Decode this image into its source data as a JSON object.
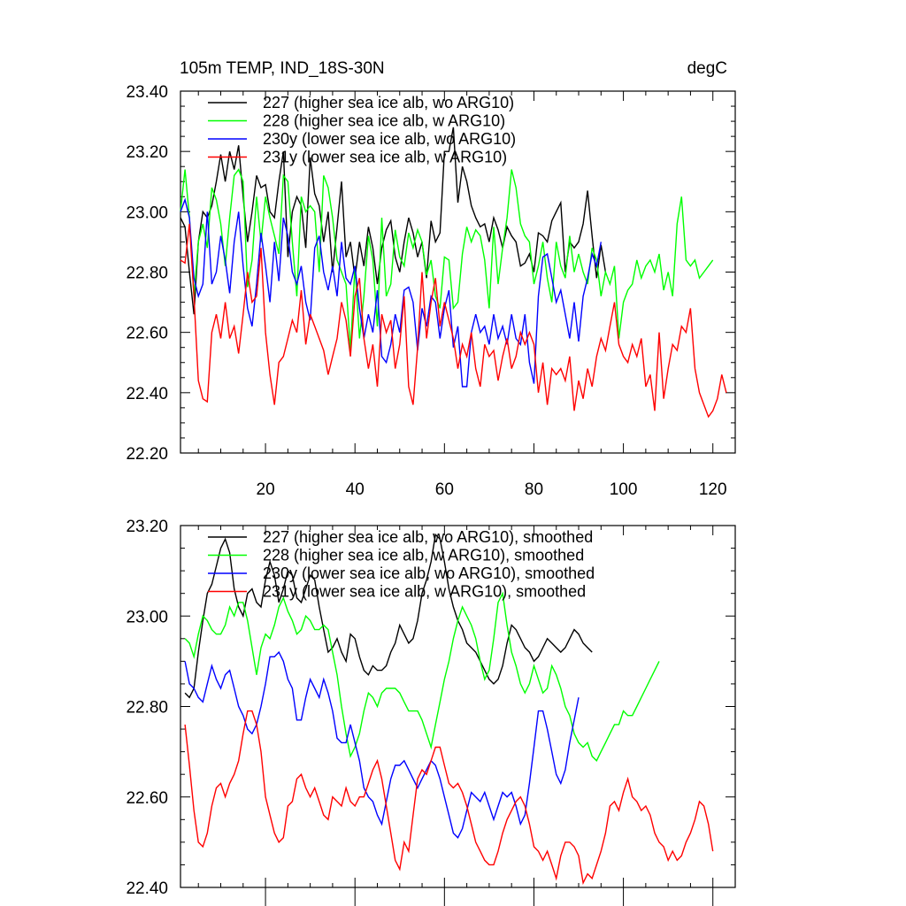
{
  "chart_data": [
    {
      "type": "line",
      "title_left": "105m TEMP, IND_18S-30N",
      "title_right": "degC",
      "xlabel": "",
      "ylabel": "",
      "xlim": [
        1,
        125
      ],
      "ylim": [
        22.2,
        23.4
      ],
      "xticks": [
        20,
        40,
        60,
        80,
        100,
        120
      ],
      "yticks": [
        22.2,
        22.4,
        22.6,
        22.8,
        23.0,
        23.2,
        23.4
      ],
      "yticklabels": [
        "22.20",
        "22.40",
        "22.60",
        "22.80",
        "23.00",
        "23.20",
        "23.40"
      ],
      "legend": "top-left",
      "series": [
        {
          "name": "227 (higher sea ice alb, wo ARG10)",
          "color": "#000000",
          "x_start": 1,
          "values": [
            22.98,
            22.95,
            22.8,
            22.66,
            22.9,
            23.0,
            22.98,
            23.02,
            23.1,
            23.19,
            23.1,
            23.2,
            23.14,
            23.22,
            23.05,
            22.9,
            23.0,
            23.12,
            23.08,
            23.09,
            23.0,
            22.98,
            23.1,
            23.2,
            22.85,
            23.0,
            23.05,
            23.02,
            22.88,
            23.18,
            23.06,
            23.02,
            22.9,
            23.0,
            22.8,
            22.95,
            23.1,
            22.85,
            22.9,
            22.78,
            22.9,
            22.82,
            22.95,
            22.88,
            22.76,
            22.88,
            22.94,
            22.97,
            22.85,
            22.8,
            22.9,
            22.98,
            22.93,
            22.85,
            22.9,
            22.78,
            22.97,
            22.9,
            22.93,
            23.2,
            23.2,
            23.28,
            23.03,
            23.15,
            23.1,
            23.02,
            22.98,
            22.95,
            22.96,
            22.9,
            22.98,
            22.94,
            22.88,
            22.95,
            22.92,
            22.9,
            22.82,
            22.83,
            22.86,
            22.8,
            22.93,
            22.92,
            22.9,
            22.97,
            23.0,
            23.03,
            22.8,
            22.9,
            22.88,
            22.9,
            22.96,
            23.07,
            22.92,
            22.78,
            22.89,
            22.8
          ]
        },
        {
          "name": "228 (higher sea ice alb, w ARG10)",
          "color": "#00ff00",
          "x_start": 1,
          "values": [
            23.0,
            23.14,
            22.98,
            22.72,
            22.9,
            22.96,
            22.88,
            23.08,
            23.04,
            22.96,
            22.82,
            22.98,
            23.12,
            23.14,
            23.1,
            22.75,
            22.84,
            23.05,
            22.9,
            23.05,
            22.98,
            22.92,
            22.86,
            23.12,
            23.1,
            22.9,
            22.72,
            23.05,
            23.0,
            23.02,
            23.0,
            22.8,
            23.12,
            23.08,
            22.98,
            22.84,
            22.8,
            22.76,
            22.54,
            22.82,
            22.58,
            22.72,
            22.92,
            22.84,
            22.62,
            22.98,
            22.72,
            22.76,
            22.94,
            22.85,
            22.82,
            22.93,
            22.88,
            22.94,
            22.9,
            22.79,
            22.84,
            22.72,
            22.68,
            22.85,
            22.84,
            22.68,
            22.7,
            22.86,
            22.95,
            22.9,
            22.94,
            22.92,
            22.84,
            22.68,
            22.95,
            22.76,
            22.88,
            22.98,
            23.14,
            23.08,
            22.96,
            22.92,
            22.9,
            22.76,
            22.82,
            22.9,
            22.78,
            22.7,
            22.9,
            22.82,
            22.78,
            22.92,
            22.8,
            22.86,
            22.8,
            22.76,
            22.88,
            22.84,
            22.72,
            22.8,
            22.76,
            22.82,
            22.58,
            22.7,
            22.74,
            22.76,
            22.84,
            22.78,
            22.82,
            22.84,
            22.8,
            22.86,
            22.74,
            22.8,
            22.72,
            22.96,
            23.05,
            22.84,
            22.82,
            22.84,
            22.78,
            22.8,
            22.82,
            22.84
          ]
        },
        {
          "name": "230y (lower sea ice alb, wo ARG10)",
          "color": "#0000ff",
          "x_start": 1,
          "values": [
            23.0,
            23.04,
            22.98,
            22.78,
            22.72,
            22.76,
            23.0,
            22.76,
            22.8,
            22.92,
            22.84,
            22.73,
            22.9,
            23.0,
            22.82,
            22.68,
            22.62,
            22.76,
            22.93,
            22.82,
            22.7,
            22.9,
            22.77,
            22.98,
            22.92,
            22.8,
            22.76,
            22.82,
            22.7,
            22.64,
            22.88,
            22.92,
            22.8,
            22.74,
            22.82,
            22.72,
            22.9,
            22.78,
            22.76,
            22.82,
            22.68,
            22.58,
            22.66,
            22.6,
            22.74,
            22.52,
            22.5,
            22.56,
            22.66,
            22.6,
            22.74,
            22.75,
            22.7,
            22.54,
            22.68,
            22.62,
            22.72,
            22.7,
            22.58,
            22.68,
            22.74,
            22.55,
            22.62,
            22.42,
            22.42,
            22.6,
            22.66,
            22.6,
            22.62,
            22.56,
            22.66,
            22.58,
            22.62,
            22.56,
            22.66,
            22.58,
            22.56,
            22.66,
            22.5,
            22.43,
            22.72,
            22.85,
            22.86,
            22.78,
            22.7,
            22.74,
            22.66,
            22.58,
            22.7,
            22.57,
            22.72,
            22.78,
            22.86,
            22.82,
            22.9
          ]
        },
        {
          "name": "231y (lower sea ice alb, w ARG10)",
          "color": "#ff0000",
          "x_start": 1,
          "values": [
            22.84,
            22.83,
            22.96,
            22.72,
            22.44,
            22.38,
            22.37,
            22.6,
            22.66,
            22.58,
            22.7,
            22.58,
            22.62,
            22.53,
            22.66,
            22.8,
            22.7,
            22.72,
            22.88,
            22.6,
            22.46,
            22.36,
            22.5,
            22.52,
            22.58,
            22.64,
            22.6,
            22.74,
            22.56,
            22.66,
            22.62,
            22.58,
            22.54,
            22.46,
            22.52,
            22.58,
            22.7,
            22.64,
            22.52,
            22.72,
            22.78,
            22.58,
            22.48,
            22.56,
            22.42,
            22.66,
            22.6,
            22.64,
            22.48,
            22.56,
            22.72,
            22.42,
            22.36,
            22.55,
            22.8,
            22.58,
            22.7,
            22.78,
            22.62,
            22.7,
            22.64,
            22.58,
            22.48,
            22.56,
            22.52,
            22.6,
            22.48,
            22.42,
            22.56,
            22.52,
            22.54,
            22.44,
            22.52,
            22.58,
            22.48,
            22.52,
            22.6,
            22.56,
            22.6,
            22.56,
            22.4,
            22.5,
            22.36,
            22.48,
            22.46,
            22.48,
            22.44,
            22.52,
            22.34,
            22.44,
            22.38,
            22.48,
            22.42,
            22.52,
            22.58,
            22.54,
            22.62,
            22.7,
            22.56,
            22.52,
            22.5,
            22.56,
            22.52,
            22.58,
            22.42,
            22.46,
            22.34,
            22.6,
            22.38,
            22.48,
            22.56,
            22.54,
            22.62,
            22.6,
            22.68,
            22.48,
            22.4,
            22.36,
            22.32,
            22.34,
            22.38,
            22.46,
            22.4
          ]
        }
      ]
    },
    {
      "type": "line",
      "xlabel": "",
      "ylabel": "",
      "xlim": [
        1,
        125
      ],
      "ylim": [
        22.4,
        23.2
      ],
      "xticks": [
        20,
        40,
        60,
        80,
        100,
        120
      ],
      "yticks": [
        22.4,
        22.6,
        22.8,
        23.0,
        23.2
      ],
      "yticklabels": [
        "22.40",
        "22.60",
        "22.80",
        "23.00",
        "23.20"
      ],
      "legend": "top-left",
      "series": [
        {
          "name": "227 (higher sea ice alb, wo ARG10), smoothed",
          "color": "#000000",
          "x_start": 2,
          "values": [
            22.83,
            22.82,
            22.84,
            22.92,
            22.99,
            23.05,
            23.07,
            23.11,
            23.15,
            23.17,
            23.14,
            23.06,
            23.02,
            23.0,
            23.05,
            23.06,
            23.03,
            23.02,
            23.08,
            23.12,
            23.09,
            23.03,
            23.06,
            23.1,
            23.09,
            23.04,
            23.03,
            23.06,
            23.09,
            23.08,
            23.02,
            22.97,
            22.92,
            22.93,
            22.95,
            22.92,
            22.9,
            22.96,
            22.95,
            22.91,
            22.88,
            22.87,
            22.89,
            22.88,
            22.88,
            22.89,
            22.92,
            22.94,
            22.98,
            22.96,
            22.94,
            22.95,
            22.99,
            23.05,
            23.08,
            23.12,
            23.18,
            23.17,
            23.12,
            23.06,
            23.02,
            22.99,
            22.97,
            22.94,
            22.93,
            22.92,
            22.9,
            22.88,
            22.86,
            22.85,
            22.86,
            22.89,
            22.94,
            22.98,
            22.97,
            22.95,
            22.93,
            22.92,
            22.9,
            22.91,
            22.93,
            22.95,
            22.94,
            22.93,
            22.92,
            22.93,
            22.95,
            22.97,
            22.96,
            22.94,
            22.93,
            22.92
          ]
        },
        {
          "name": "228 (higher sea ice alb, w ARG10), smoothed",
          "color": "#00ff00",
          "x_start": 2,
          "values": [
            22.95,
            22.94,
            22.91,
            22.96,
            23.0,
            22.99,
            22.97,
            22.96,
            22.96,
            22.98,
            23.02,
            23.0,
            23.03,
            23.03,
            22.99,
            22.93,
            22.87,
            22.93,
            22.96,
            22.95,
            22.98,
            23.02,
            23.04,
            23.01,
            22.99,
            22.96,
            22.97,
            23.0,
            22.99,
            22.97,
            22.97,
            22.98,
            22.97,
            22.92,
            22.87,
            22.8,
            22.74,
            22.69,
            22.71,
            22.74,
            22.79,
            22.83,
            22.82,
            22.8,
            22.83,
            22.84,
            22.84,
            22.84,
            22.83,
            22.81,
            22.79,
            22.79,
            22.79,
            22.77,
            22.74,
            22.71,
            22.76,
            22.81,
            22.86,
            22.9,
            22.95,
            22.99,
            23.02,
            23.0,
            22.98,
            22.95,
            22.9,
            22.86,
            22.88,
            22.95,
            23.03,
            23.05,
            22.98,
            22.92,
            22.89,
            22.85,
            22.83,
            22.85,
            22.89,
            22.86,
            22.83,
            22.84,
            22.89,
            22.87,
            22.84,
            22.8,
            22.78,
            22.74,
            22.72,
            22.71,
            22.72,
            22.69,
            22.68,
            22.7,
            22.72,
            22.74,
            22.76,
            22.76,
            22.79,
            22.78,
            22.78,
            22.8,
            22.82,
            22.84,
            22.86,
            22.88,
            22.9
          ]
        },
        {
          "name": "230y (lower sea ice alb, wo ARG10), smoothed",
          "color": "#0000ff",
          "x_start": 2,
          "values": [
            22.9,
            22.85,
            22.84,
            22.82,
            22.81,
            22.85,
            22.89,
            22.86,
            22.84,
            22.87,
            22.88,
            22.84,
            22.8,
            22.78,
            22.75,
            22.74,
            22.76,
            22.8,
            22.85,
            22.91,
            22.91,
            22.92,
            22.9,
            22.86,
            22.84,
            22.77,
            22.77,
            22.82,
            22.86,
            22.84,
            22.82,
            22.86,
            22.83,
            22.79,
            22.73,
            22.72,
            22.72,
            22.76,
            22.72,
            22.68,
            22.62,
            22.6,
            22.59,
            22.56,
            22.54,
            22.59,
            22.64,
            22.67,
            22.67,
            22.68,
            22.66,
            22.64,
            22.62,
            22.64,
            22.66,
            22.68,
            22.67,
            22.64,
            22.6,
            22.56,
            22.52,
            22.51,
            22.53,
            22.57,
            22.61,
            22.6,
            22.59,
            22.61,
            22.58,
            22.55,
            22.58,
            22.61,
            22.6,
            22.61,
            22.58,
            22.54,
            22.56,
            22.63,
            22.71,
            22.79,
            22.79,
            22.75,
            22.7,
            22.65,
            22.63,
            22.66,
            22.72,
            22.77,
            22.82
          ]
        },
        {
          "name": "231y (lower sea ice alb, w ARG10), smoothed",
          "color": "#ff0000",
          "x_start": 2,
          "values": [
            22.76,
            22.67,
            22.57,
            22.5,
            22.49,
            22.52,
            22.58,
            22.62,
            22.63,
            22.6,
            22.63,
            22.65,
            22.68,
            22.74,
            22.79,
            22.79,
            22.76,
            22.7,
            22.6,
            22.56,
            22.52,
            22.5,
            22.51,
            22.58,
            22.59,
            22.64,
            22.65,
            22.62,
            22.6,
            22.62,
            22.59,
            22.56,
            22.55,
            22.6,
            22.59,
            22.58,
            22.62,
            22.59,
            22.58,
            22.6,
            22.6,
            22.63,
            22.66,
            22.68,
            22.64,
            22.58,
            22.52,
            22.46,
            22.44,
            22.5,
            22.48,
            22.56,
            22.64,
            22.66,
            22.65,
            22.68,
            22.71,
            22.71,
            22.67,
            22.63,
            22.62,
            22.63,
            22.61,
            22.58,
            22.54,
            22.5,
            22.48,
            22.46,
            22.45,
            22.45,
            22.48,
            22.52,
            22.55,
            22.57,
            22.59,
            22.6,
            22.58,
            22.54,
            22.49,
            22.48,
            22.46,
            22.48,
            22.45,
            22.42,
            22.47,
            22.5,
            22.5,
            22.49,
            22.47,
            22.41,
            22.43,
            22.42,
            22.45,
            22.48,
            22.52,
            22.58,
            22.59,
            22.57,
            22.61,
            22.64,
            22.6,
            22.59,
            22.57,
            22.58,
            22.56,
            22.52,
            22.5,
            22.49,
            22.46,
            22.48,
            22.46,
            22.47,
            22.5,
            22.52,
            22.55,
            22.59,
            22.58,
            22.54,
            22.48
          ]
        }
      ]
    }
  ]
}
